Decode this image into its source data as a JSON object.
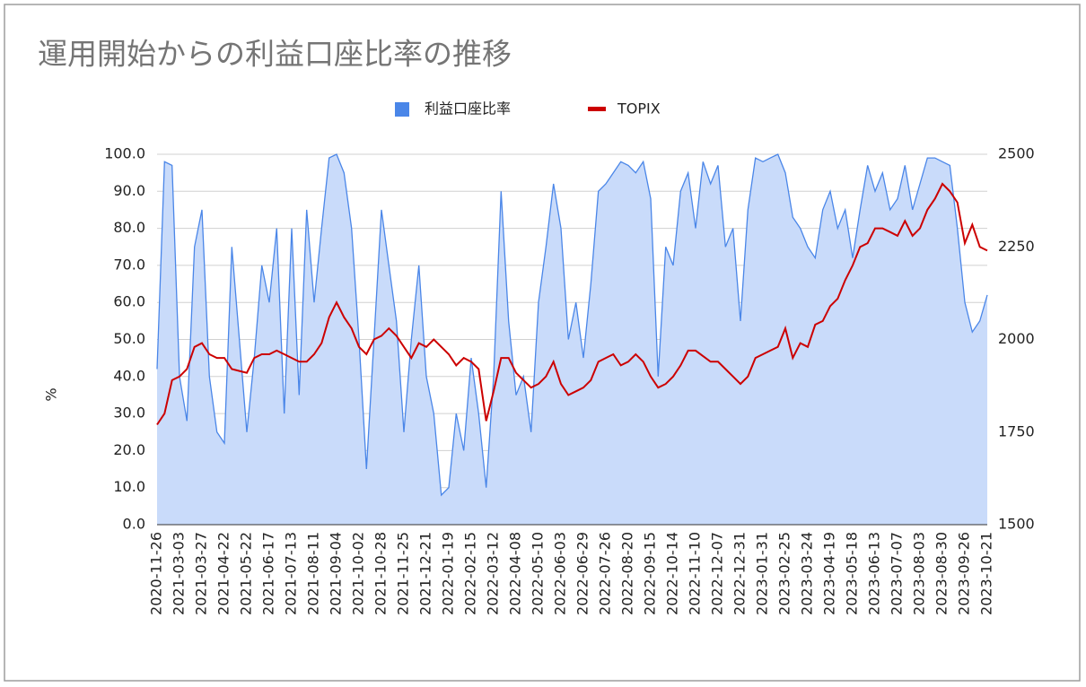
{
  "chart_data": {
    "type": "area_line",
    "title": "運用開始からの利益口座比率の推移",
    "y_label": "%",
    "legend": "top",
    "grid": true,
    "categories": [
      "2020-11-26",
      null,
      null,
      "2021-03-03",
      null,
      null,
      "2021-03-27",
      null,
      null,
      "2021-04-22",
      null,
      null,
      "2021-05-22",
      null,
      null,
      "2021-06-17",
      null,
      null,
      "2021-07-13",
      null,
      null,
      "2021-08-11",
      null,
      null,
      "2021-09-04",
      null,
      null,
      "2021-10-02",
      null,
      null,
      "2021-10-28",
      null,
      null,
      "2021-11-25",
      null,
      null,
      "2021-12-21",
      null,
      null,
      "2022-01-19",
      null,
      null,
      "2022-02-15",
      null,
      null,
      "2022-03-12",
      null,
      null,
      "2022-04-08",
      null,
      null,
      "2022-05-10",
      null,
      null,
      "2022-06-03",
      null,
      null,
      "2022-06-29",
      null,
      null,
      "2022-07-26",
      null,
      null,
      "2022-08-20",
      null,
      null,
      "2022-09-15",
      null,
      null,
      "2022-10-14",
      null,
      null,
      "2022-11-10",
      null,
      null,
      "2022-12-07",
      null,
      null,
      "2022-12-31",
      null,
      null,
      "2023-01-31",
      null,
      null,
      "2023-02-25",
      null,
      null,
      "2023-03-24",
      null,
      null,
      "2023-04-19",
      null,
      null,
      "2023-05-18",
      null,
      null,
      "2023-06-13",
      null,
      null,
      "2023-07-07",
      null,
      null,
      "2023-08-03",
      null,
      null,
      "2023-08-30",
      null,
      null,
      "2023-09-26",
      null,
      null,
      "2023-10-21"
    ],
    "series": [
      {
        "name": "利益口座比率",
        "color": "#4a86e8",
        "fill": "#c9dbfa",
        "kind": "area",
        "axis": "y",
        "values": [
          42,
          98,
          97,
          40,
          28,
          75,
          85,
          40,
          25,
          22,
          75,
          50,
          25,
          45,
          70,
          60,
          80,
          30,
          80,
          35,
          85,
          60,
          80,
          99,
          100,
          95,
          80,
          50,
          15,
          50,
          85,
          70,
          55,
          25,
          50,
          70,
          40,
          30,
          8,
          10,
          30,
          20,
          45,
          30,
          10,
          40,
          90,
          55,
          35,
          40,
          25,
          60,
          75,
          92,
          80,
          50,
          60,
          45,
          65,
          90,
          92,
          95,
          98,
          97,
          95,
          98,
          88,
          40,
          75,
          70,
          90,
          95,
          80,
          98,
          92,
          97,
          75,
          80,
          55,
          85,
          99,
          98,
          99,
          100,
          95,
          83,
          80,
          75,
          72,
          85,
          90,
          80,
          85,
          72,
          85,
          97,
          90,
          95,
          85,
          88,
          97,
          85,
          92,
          99,
          99,
          98,
          97,
          80,
          60,
          52,
          55,
          62
        ]
      },
      {
        "name": "TOPIX",
        "color": "#cc0000",
        "kind": "line",
        "axis": "y2",
        "values": [
          1770,
          1800,
          1890,
          1900,
          1920,
          1980,
          1990,
          1960,
          1950,
          1950,
          1920,
          1915,
          1910,
          1950,
          1960,
          1960,
          1970,
          1960,
          1950,
          1940,
          1940,
          1960,
          1990,
          2060,
          2100,
          2060,
          2030,
          1980,
          1960,
          2000,
          2010,
          2030,
          2010,
          1980,
          1950,
          1990,
          1980,
          2000,
          1980,
          1960,
          1930,
          1950,
          1940,
          1920,
          1780,
          1860,
          1950,
          1950,
          1910,
          1890,
          1870,
          1880,
          1900,
          1940,
          1880,
          1850,
          1860,
          1870,
          1890,
          1940,
          1950,
          1960,
          1930,
          1940,
          1960,
          1940,
          1900,
          1870,
          1880,
          1900,
          1930,
          1970,
          1970,
          1955,
          1940,
          1940,
          1920,
          1900,
          1880,
          1900,
          1950,
          1960,
          1970,
          1980,
          2030,
          1950,
          1990,
          1980,
          2040,
          2050,
          2090,
          2110,
          2160,
          2200,
          2250,
          2260,
          2300,
          2300,
          2290,
          2280,
          2320,
          2280,
          2300,
          2350,
          2380,
          2420,
          2400,
          2370,
          2260,
          2310,
          2250,
          2240
        ]
      }
    ],
    "ylim": [
      0,
      100
    ],
    "yticks": [
      {
        "value": 0,
        "label": "0.0"
      },
      {
        "value": 10,
        "label": "10.0"
      },
      {
        "value": 20,
        "label": "20.0"
      },
      {
        "value": 30,
        "label": "30.0"
      },
      {
        "value": 40,
        "label": "40.0"
      },
      {
        "value": 50,
        "label": "50.0"
      },
      {
        "value": 60,
        "label": "60.0"
      },
      {
        "value": 70,
        "label": "70.0"
      },
      {
        "value": 80,
        "label": "80.0"
      },
      {
        "value": 90,
        "label": "90.0"
      },
      {
        "value": 100,
        "label": "100.0"
      }
    ],
    "y2lim": [
      1500,
      2500
    ],
    "y2ticks": [
      1500,
      1750,
      2000,
      2250,
      2500
    ]
  }
}
